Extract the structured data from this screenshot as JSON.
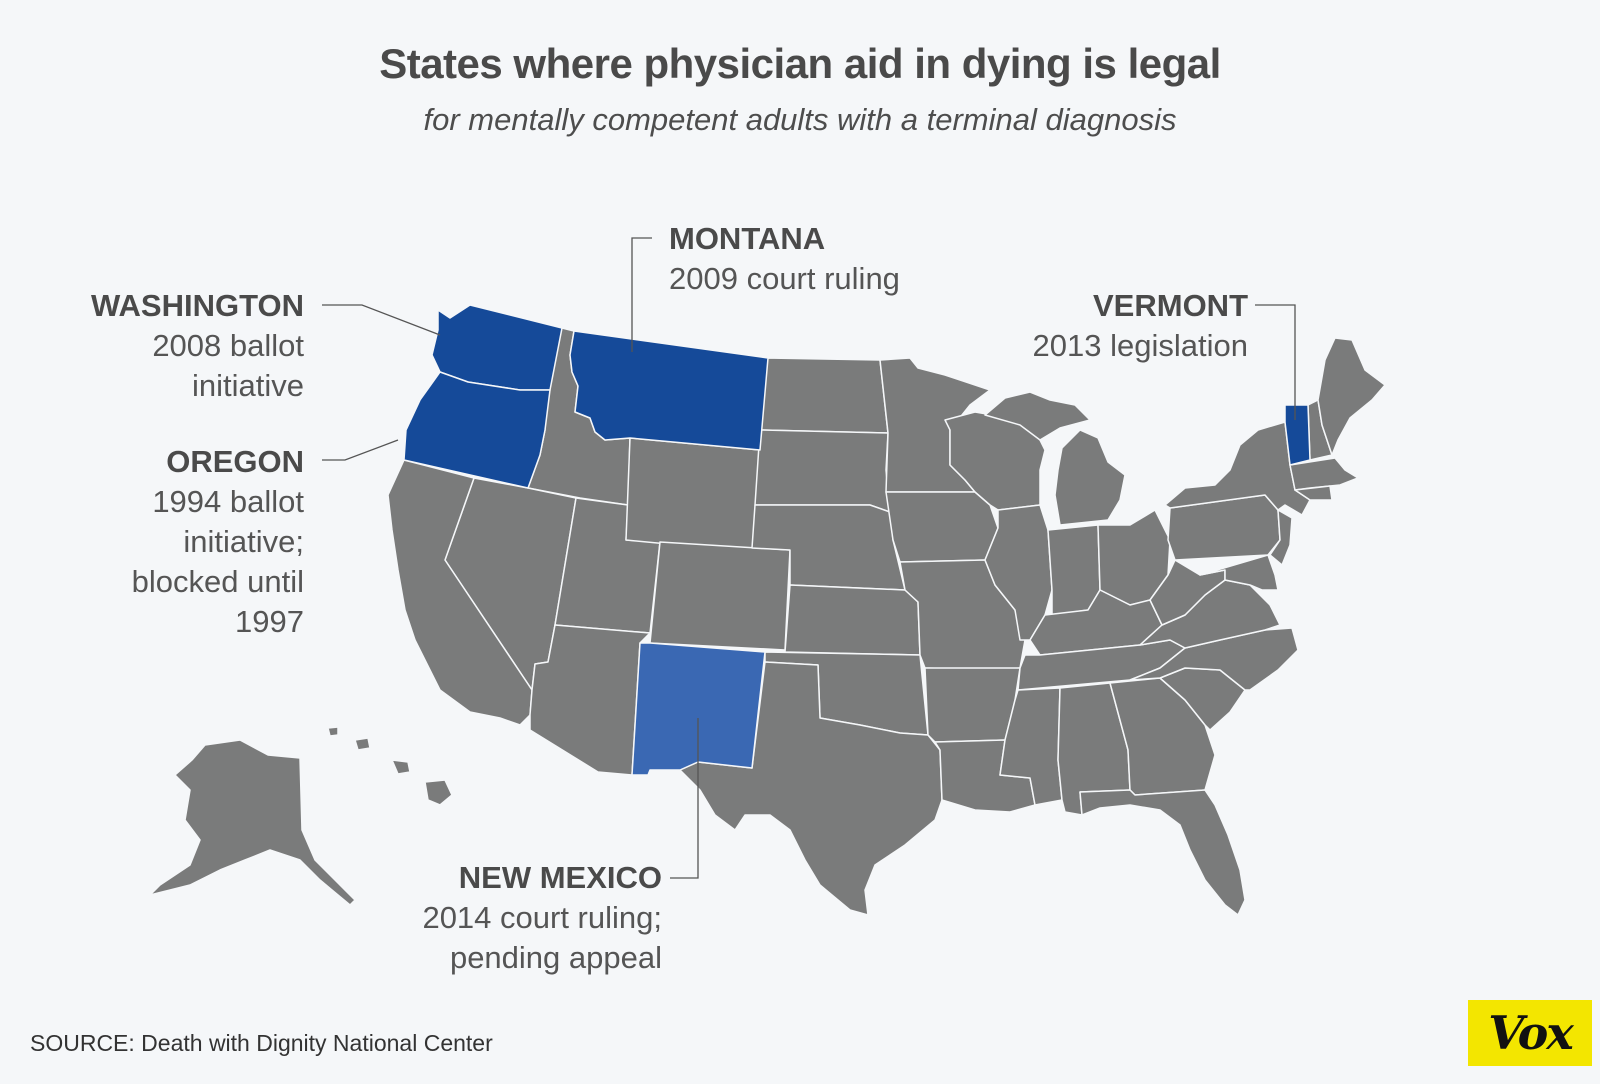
{
  "title": "States where physician aid in dying is legal",
  "subtitle": "for mentally competent adults with a terminal diagnosis",
  "colors": {
    "background": "#f5f7f9",
    "state_default": "#7a7b7b",
    "state_border": "#f5f7f9",
    "legal_dark": "#154a99",
    "legal_light": "#3a68b3",
    "callout_line": "#555555",
    "logo_bg": "#f3e600"
  },
  "labels": {
    "washington": {
      "name": "WASHINGTON",
      "lines": [
        "2008 ballot",
        "initiative"
      ]
    },
    "oregon": {
      "name": "OREGON",
      "lines": [
        "1994 ballot",
        "initiative;",
        "blocked until",
        "1997"
      ]
    },
    "montana": {
      "name": "MONTANA",
      "lines": [
        "2009 court ruling"
      ]
    },
    "vermont": {
      "name": "VERMONT",
      "lines": [
        "2013 legislation"
      ]
    },
    "new_mexico": {
      "name": "NEW MEXICO",
      "lines": [
        "2014 court ruling;",
        "pending appeal"
      ]
    }
  },
  "source": "SOURCE: Death with Dignity National Center",
  "logo": "Vox"
}
